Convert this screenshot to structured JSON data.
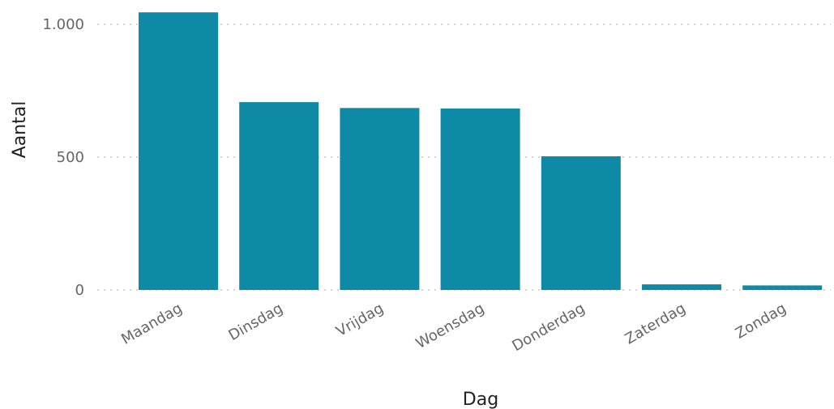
{
  "chart_data": {
    "type": "bar",
    "categories": [
      "Maandag",
      "Dinsdag",
      "Vrijdag",
      "Woensdag",
      "Donderdag",
      "Zaterdag",
      "Zondag"
    ],
    "values": [
      1045,
      707,
      685,
      683,
      503,
      21,
      17
    ],
    "xlabel": "Dag",
    "ylabel": "Aantal",
    "ylim": [
      0,
      1000
    ],
    "yticks": [
      0,
      500,
      1000
    ],
    "ytick_labels": [
      "0",
      "500",
      "1.000"
    ],
    "grid": true,
    "legend": "none",
    "bar_color": "#0e8aa6"
  }
}
